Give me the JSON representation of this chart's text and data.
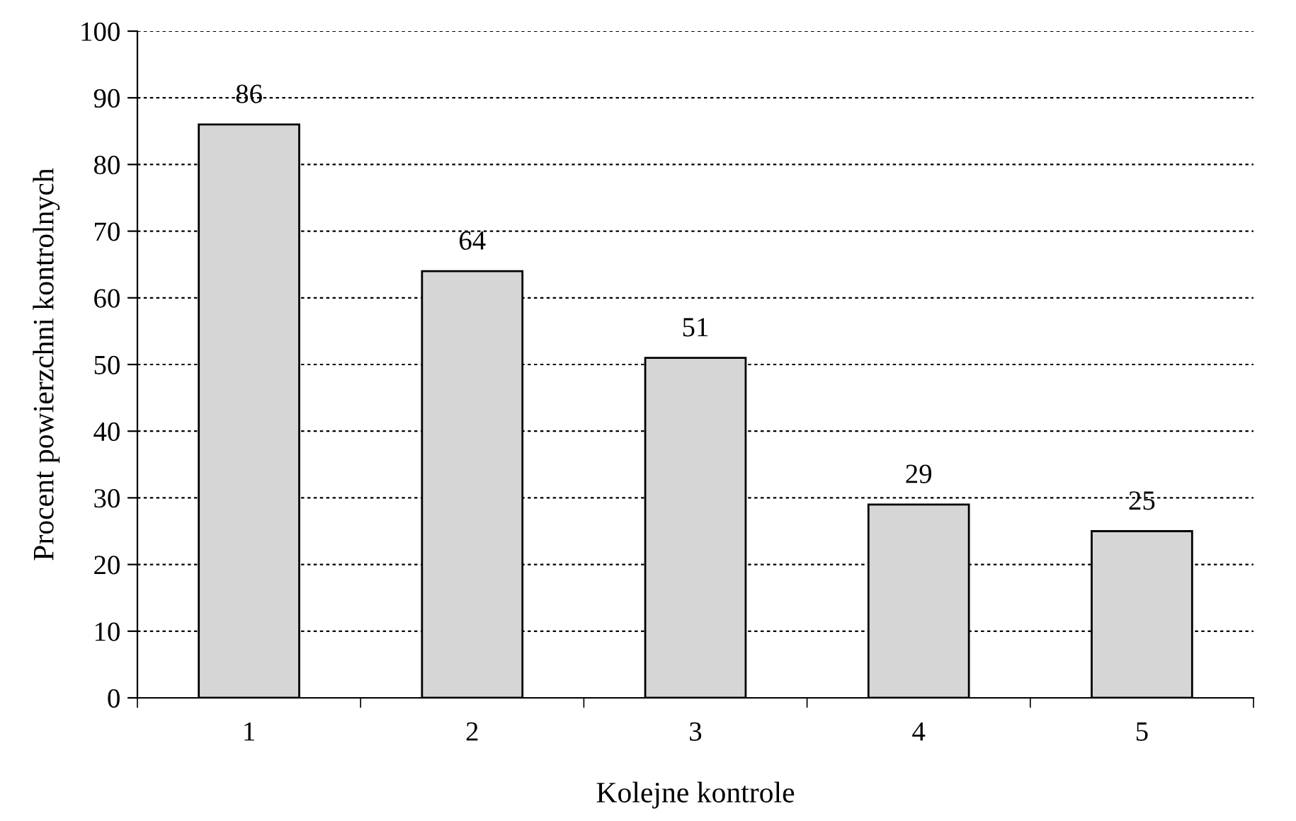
{
  "chart_data": {
    "type": "bar",
    "xlabel": "Kolejne kontrole",
    "ylabel": "Procent powierzchni kontrolnych",
    "categories": [
      "1",
      "2",
      "3",
      "4",
      "5"
    ],
    "values": [
      86,
      64,
      51,
      29,
      25
    ],
    "color": "#d6d6d6",
    "ylim": [
      0,
      100
    ],
    "yticks": [
      0,
      10,
      20,
      30,
      40,
      50,
      60,
      70,
      80,
      90,
      100
    ],
    "grid": "y",
    "data_labels": true,
    "legend": false
  }
}
